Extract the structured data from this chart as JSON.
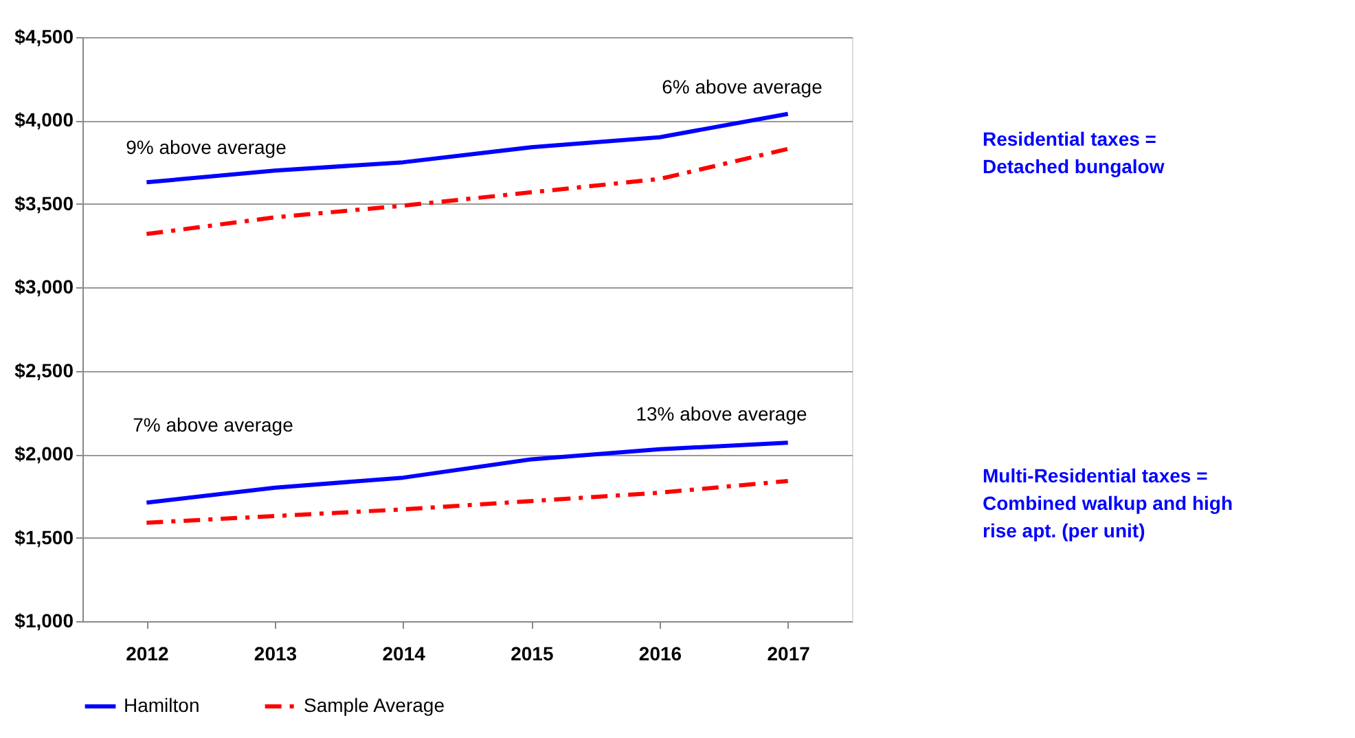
{
  "chart_data": {
    "type": "line",
    "categories": [
      "2012",
      "2013",
      "2014",
      "2015",
      "2016",
      "2017"
    ],
    "series": [
      {
        "name": "Hamilton",
        "color": "#0000ff",
        "line_style": "solid",
        "values": [
          3630,
          3700,
          3750,
          3840,
          3900,
          4040
        ]
      },
      {
        "name": "Sample Average",
        "color": "#ff0000",
        "line_style": "dashed",
        "values": [
          3320,
          3420,
          3490,
          3570,
          3650,
          3830
        ]
      },
      {
        "color": "#0000ff",
        "line_style": "solid",
        "values": [
          1710,
          1800,
          1860,
          1970,
          2030,
          2070
        ]
      },
      {
        "color": "#ff0000",
        "line_style": "dashed",
        "values": [
          1590,
          1630,
          1670,
          1720,
          1770,
          1840
        ]
      }
    ],
    "ylim": [
      1000,
      4500
    ],
    "yticks": [
      {
        "value": 1000,
        "label": "$1,000"
      },
      {
        "value": 1500,
        "label": "$1,500"
      },
      {
        "value": 2000,
        "label": "$2,000"
      },
      {
        "value": 2500,
        "label": "$2,500"
      },
      {
        "value": 3000,
        "label": "$3,000"
      },
      {
        "value": 3500,
        "label": "$3,500"
      },
      {
        "value": 4000,
        "label": "$4,000"
      },
      {
        "value": 4500,
        "label": "$4,500"
      }
    ],
    "grid": "y",
    "legend": "bottom",
    "marker": "none",
    "annotations": [
      "9% above average",
      "6% above average",
      "7% above average",
      "13% above average",
      "Residential taxes =\nDetached bungalow",
      "Multi-Residential taxes  =\nCombined walkup and high\nrise apt. (per unit)"
    ]
  }
}
